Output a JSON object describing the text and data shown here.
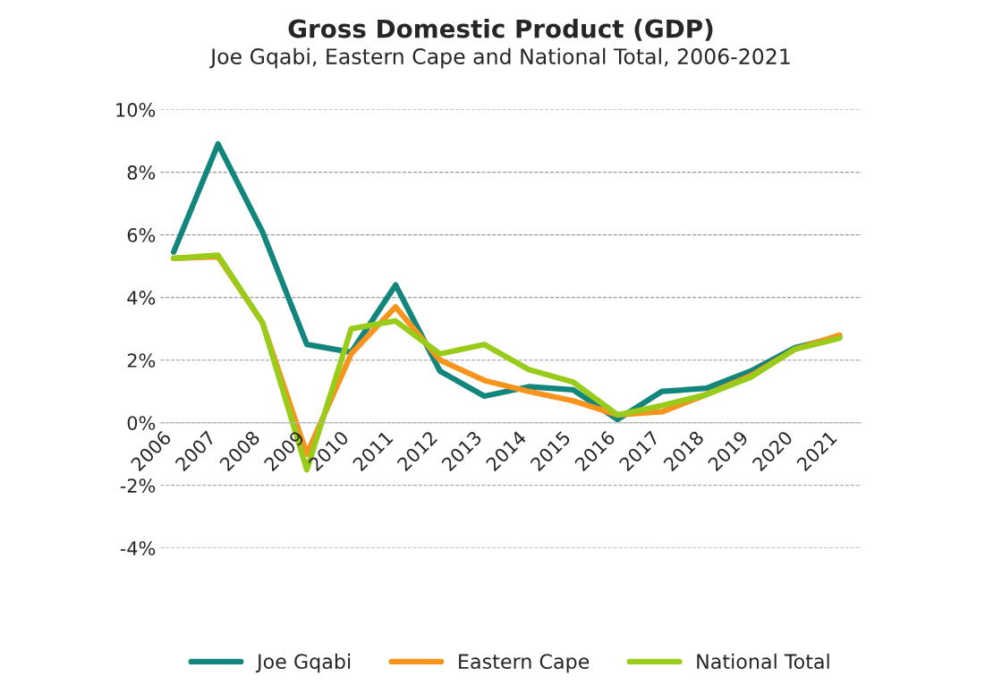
{
  "chart_data": {
    "type": "line",
    "title": "Gross Domestic Product (GDP)",
    "subtitle": "Joe Gqabi, Eastern Cape and National Total, 2006-2021",
    "categories": [
      "2006",
      "2007",
      "2008",
      "2009",
      "2010",
      "2011",
      "2012",
      "2013",
      "2014",
      "2015",
      "2016",
      "2017",
      "2018",
      "2019",
      "2020",
      "2021"
    ],
    "series": [
      {
        "name": "Joe Gqabi",
        "color": "#12857c",
        "values": [
          5.45,
          8.9,
          6.1,
          2.5,
          2.25,
          4.4,
          1.65,
          0.85,
          1.15,
          1.05,
          0.1,
          1.0,
          1.1,
          1.65,
          2.4,
          2.75
        ]
      },
      {
        "name": "Eastern Cape",
        "color": "#f7941d",
        "values": [
          5.25,
          5.3,
          3.2,
          -1.0,
          2.2,
          3.7,
          2.0,
          1.35,
          1.0,
          0.7,
          0.25,
          0.35,
          0.9,
          1.5,
          2.35,
          2.8
        ]
      },
      {
        "name": "National Total",
        "color": "#99cc1a",
        "values": [
          5.25,
          5.35,
          3.2,
          -1.5,
          3.0,
          3.25,
          2.2,
          2.5,
          1.7,
          1.3,
          0.25,
          0.55,
          0.9,
          1.45,
          2.35,
          2.7
        ]
      }
    ],
    "ylim": [
      -4,
      10
    ],
    "yticks": [
      {
        "value": -4,
        "label": "-4%"
      },
      {
        "value": -2,
        "label": "-2%"
      },
      {
        "value": 0,
        "label": "0%"
      },
      {
        "value": 2,
        "label": "2%"
      },
      {
        "value": 4,
        "label": "4%"
      },
      {
        "value": 6,
        "label": "6%"
      },
      {
        "value": 8,
        "label": "8%"
      },
      {
        "value": 10,
        "label": "10%"
      }
    ],
    "grid": "y",
    "legend": "bottom",
    "marker": "none",
    "line_style": "solid"
  }
}
